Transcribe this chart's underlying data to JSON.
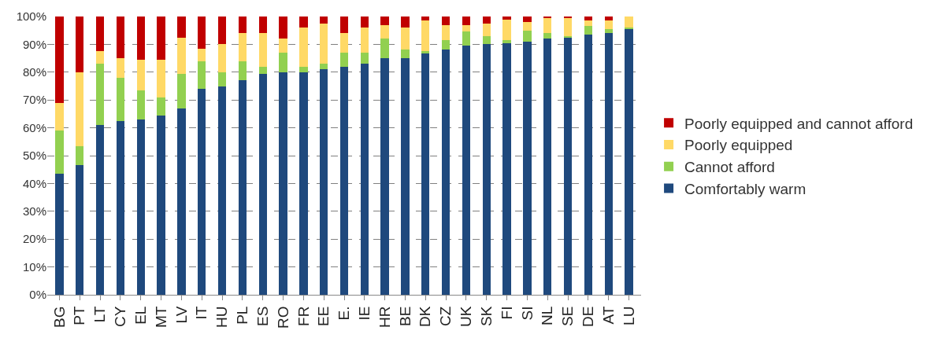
{
  "chart_data": {
    "type": "bar",
    "stacked": true,
    "categories": [
      "BG",
      "PT",
      "LT",
      "CY",
      "EL",
      "MT",
      "LV",
      "IT",
      "HU",
      "PL",
      "ES",
      "RO",
      "FR",
      "EE",
      "E.",
      "IE",
      "HR",
      "BE",
      "DK",
      "CZ",
      "UK",
      "SK",
      "FI",
      "SI",
      "NL",
      "SE",
      "DE",
      "AT",
      "LU"
    ],
    "series": [
      {
        "name": "Comfortably warm",
        "color": "#1f497d",
        "values": [
          43.5,
          46.5,
          61,
          62.5,
          63,
          64.5,
          67,
          74,
          75,
          77,
          79.5,
          80,
          80,
          81,
          82,
          83,
          85,
          85,
          87,
          88,
          89.5,
          90,
          90.5,
          91,
          92,
          92.5,
          93.5,
          94,
          95.5
        ]
      },
      {
        "name": "Cannot afford",
        "color": "#92d050",
        "values": [
          15.5,
          7,
          22,
          15.5,
          10.5,
          6.5,
          12.5,
          10,
          5,
          7,
          2.5,
          7,
          2,
          2,
          5,
          4,
          7,
          3,
          0.5,
          3.5,
          5,
          3,
          1,
          4,
          2,
          0.5,
          3,
          1.5,
          0.5
        ]
      },
      {
        "name": "Poorly equipped",
        "color": "#ffd966",
        "values": [
          10,
          26.5,
          4.5,
          7,
          11,
          13.5,
          13,
          4.5,
          10,
          10,
          12,
          5,
          14,
          14.5,
          7,
          9,
          5,
          8,
          11,
          5.5,
          2.5,
          4.5,
          7.5,
          3,
          5.5,
          6.5,
          2,
          3,
          4
        ]
      },
      {
        "name": "Poorly equipped and cannot afford",
        "color": "#c00000",
        "values": [
          31,
          20,
          12.5,
          15,
          15.5,
          15.5,
          7.5,
          11.5,
          10,
          6,
          6,
          8,
          4,
          2.5,
          6,
          4,
          3,
          4,
          1.5,
          3,
          3,
          2.5,
          1,
          2,
          0.5,
          0.5,
          1.5,
          1.5,
          0
        ]
      }
    ],
    "ylim": [
      0,
      100
    ],
    "yticks": [
      {
        "value": 0,
        "label": "0%"
      },
      {
        "value": 10,
        "label": "10%"
      },
      {
        "value": 20,
        "label": "20%"
      },
      {
        "value": 30,
        "label": "30%"
      },
      {
        "value": 40,
        "label": "40%"
      },
      {
        "value": 50,
        "label": "50%"
      },
      {
        "value": 60,
        "label": "60%"
      },
      {
        "value": 70,
        "label": "70%"
      },
      {
        "value": 80,
        "label": "80%"
      },
      {
        "value": 90,
        "label": "90%"
      },
      {
        "value": 100,
        "label": "100%"
      }
    ],
    "grid": "y",
    "legend": "right"
  }
}
